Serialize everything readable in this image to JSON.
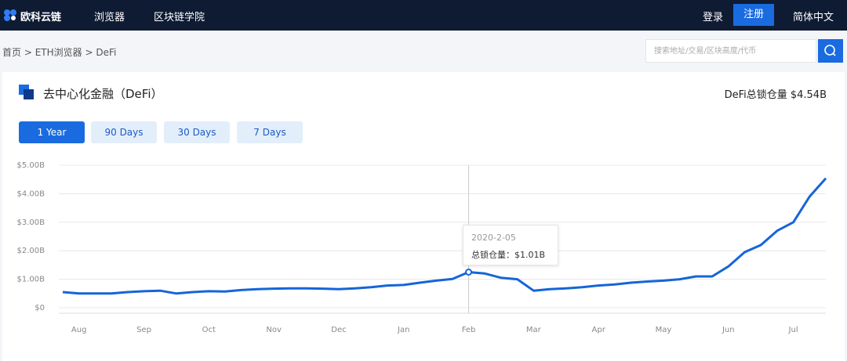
{
  "header": {
    "logo": "欧科云链",
    "nav": [
      "浏览器",
      "区块链学院"
    ],
    "login": "登录",
    "register": "注册",
    "language": "简体中文"
  },
  "breadcrumb": [
    "首页",
    "ETH浏览器",
    "DeFi"
  ],
  "search_placeholder": "搜索地址/交易/区块高度/代币",
  "card": {
    "title": "去中心化金融（DeFi）",
    "tvl": "DeFi总锁仓量 $4.54B",
    "ranges": [
      "1 Year",
      "90 Days",
      "30 Days",
      "7 Days"
    ]
  },
  "chart_data": {
    "type": "line",
    "color": "#1565d8",
    "grid": true,
    "categories": [
      null,
      "Aug",
      null,
      null,
      null,
      "Sep",
      null,
      null,
      null,
      "Oct",
      null,
      null,
      null,
      "Nov",
      null,
      null,
      null,
      "Dec",
      null,
      null,
      null,
      "Jan",
      null,
      null,
      null,
      "Feb",
      null,
      null,
      null,
      "Mar",
      null,
      null,
      null,
      "Apr",
      null,
      null,
      null,
      "May",
      null,
      null,
      null,
      "Jun",
      null,
      null,
      null,
      "Jul",
      null,
      null
    ],
    "values": [
      0.55,
      0.5,
      0.5,
      0.5,
      0.55,
      0.58,
      0.6,
      0.5,
      0.55,
      0.58,
      0.57,
      0.62,
      0.65,
      0.67,
      0.68,
      0.68,
      0.67,
      0.65,
      0.68,
      0.72,
      0.78,
      0.8,
      0.88,
      0.95,
      1.01,
      1.25,
      1.2,
      1.05,
      1.0,
      0.6,
      0.65,
      0.68,
      0.72,
      0.78,
      0.82,
      0.88,
      0.92,
      0.95,
      1.0,
      1.1,
      1.1,
      1.45,
      1.95,
      2.2,
      2.7,
      3.0,
      3.9,
      4.54
    ],
    "ylim": [
      0,
      5
    ],
    "yticks": [
      {
        "value": 0,
        "label": "$0"
      },
      {
        "value": 1,
        "label": "$1.00B"
      },
      {
        "value": 2,
        "label": "$2.00B"
      },
      {
        "value": 3,
        "label": "$3.00B"
      },
      {
        "value": 4,
        "label": "$4.00B"
      },
      {
        "value": 5,
        "label": "$5.00B"
      }
    ],
    "tooltip": {
      "title": "2020-2-05",
      "text": "总锁仓量：$1.01B"
    }
  }
}
